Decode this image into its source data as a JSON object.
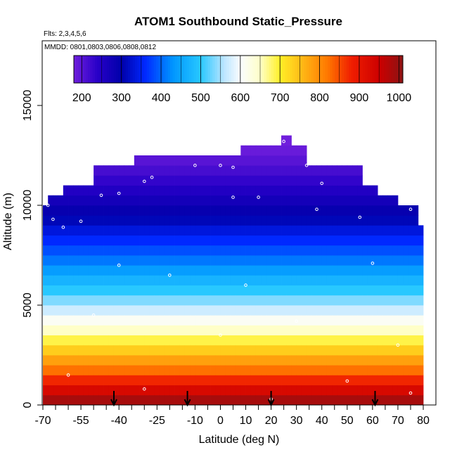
{
  "chart_data": {
    "type": "heatmap",
    "title": "ATOM1 Southbound Static_Pressure",
    "flights_note": "Flts: 2,3,4,5,6",
    "dates_note": "MMDD: 0801,0803,0806,0808,0812",
    "xlabel": "Latitude (deg N)",
    "ylabel": "Altitude (m)",
    "xlim": [
      -70,
      85
    ],
    "ylim": [
      0,
      17500
    ],
    "x_ticks": [
      -70,
      -55,
      -40,
      -25,
      -10,
      0,
      10,
      20,
      30,
      40,
      50,
      60,
      70,
      80
    ],
    "x_tick_labels": [
      "-70",
      "-55",
      "-40",
      "-25",
      "-10",
      "0",
      "10",
      "20",
      "30",
      "40",
      "50",
      "60",
      "70",
      "80"
    ],
    "x_minor_ticks": [
      -65,
      -60,
      -50,
      -45,
      -35,
      -30,
      -20,
      -15,
      -5,
      5,
      15,
      25,
      35,
      45,
      55,
      65,
      75,
      85
    ],
    "y_ticks": [
      0,
      5000,
      10000,
      15000
    ],
    "y_tick_labels": [
      "0",
      "5000",
      "10000",
      "15000"
    ],
    "colorbar": {
      "range": [
        180,
        1010
      ],
      "ticks": [
        200,
        300,
        400,
        500,
        600,
        700,
        800,
        900,
        1000
      ],
      "tick_labels": [
        "200",
        "300",
        "400",
        "500",
        "600",
        "700",
        "800",
        "900",
        "1000"
      ]
    },
    "altitude_band_m": 500,
    "lat_bin_deg": 2,
    "coverage": [
      {
        "lat_range": [
          -70,
          -68
        ],
        "max_alt_m": 10000
      },
      {
        "lat_range": [
          -68,
          -62
        ],
        "max_alt_m": 10500
      },
      {
        "lat_range": [
          -62,
          -58
        ],
        "max_alt_m": 11000
      },
      {
        "lat_range": [
          -58,
          -50
        ],
        "max_alt_m": 11000
      },
      {
        "lat_range": [
          -50,
          -34
        ],
        "max_alt_m": 12000
      },
      {
        "lat_range": [
          -34,
          -24
        ],
        "max_alt_m": 12500
      },
      {
        "lat_range": [
          -24,
          8
        ],
        "max_alt_m": 12500
      },
      {
        "lat_range": [
          8,
          24
        ],
        "max_alt_m": 13000
      },
      {
        "lat_range": [
          24,
          28
        ],
        "max_alt_m": 13500
      },
      {
        "lat_range": [
          28,
          34
        ],
        "max_alt_m": 13000
      },
      {
        "lat_range": [
          34,
          56
        ],
        "max_alt_m": 12000
      },
      {
        "lat_range": [
          56,
          62
        ],
        "max_alt_m": 11000
      },
      {
        "lat_range": [
          62,
          70
        ],
        "max_alt_m": 10500
      },
      {
        "lat_range": [
          70,
          78
        ],
        "max_alt_m": 10000
      },
      {
        "lat_range": [
          78,
          80
        ],
        "max_alt_m": 9000
      }
    ],
    "pressure_by_altitude_hpa": [
      {
        "alt_m": 250,
        "value": 985
      },
      {
        "alt_m": 750,
        "value": 930
      },
      {
        "alt_m": 1250,
        "value": 875
      },
      {
        "alt_m": 1750,
        "value": 825
      },
      {
        "alt_m": 2250,
        "value": 780
      },
      {
        "alt_m": 2750,
        "value": 735
      },
      {
        "alt_m": 3250,
        "value": 690
      },
      {
        "alt_m": 3750,
        "value": 650
      },
      {
        "alt_m": 4250,
        "value": 610
      },
      {
        "alt_m": 4750,
        "value": 570
      },
      {
        "alt_m": 5250,
        "value": 535
      },
      {
        "alt_m": 5750,
        "value": 500
      },
      {
        "alt_m": 6250,
        "value": 470
      },
      {
        "alt_m": 6750,
        "value": 440
      },
      {
        "alt_m": 7250,
        "value": 410
      },
      {
        "alt_m": 7750,
        "value": 385
      },
      {
        "alt_m": 8250,
        "value": 360
      },
      {
        "alt_m": 8750,
        "value": 335
      },
      {
        "alt_m": 9250,
        "value": 310
      },
      {
        "alt_m": 9750,
        "value": 290
      },
      {
        "alt_m": 10250,
        "value": 270
      },
      {
        "alt_m": 10750,
        "value": 250
      },
      {
        "alt_m": 11250,
        "value": 232
      },
      {
        "alt_m": 11750,
        "value": 215
      },
      {
        "alt_m": 12250,
        "value": 200
      },
      {
        "alt_m": 12750,
        "value": 187
      },
      {
        "alt_m": 13250,
        "value": 180
      }
    ],
    "arrow_latitudes": [
      -42,
      -13,
      20,
      61
    ],
    "flight_track_points": [
      {
        "lat": -66,
        "alt_m": 9300
      },
      {
        "lat": -68,
        "alt_m": 10000
      },
      {
        "lat": -62,
        "alt_m": 8900
      },
      {
        "lat": -55,
        "alt_m": 9200
      },
      {
        "lat": -47,
        "alt_m": 10500
      },
      {
        "lat": -40,
        "alt_m": 10600
      },
      {
        "lat": -30,
        "alt_m": 11200
      },
      {
        "lat": -27,
        "alt_m": 11400
      },
      {
        "lat": -10,
        "alt_m": 12000
      },
      {
        "lat": 0,
        "alt_m": 12000
      },
      {
        "lat": 5,
        "alt_m": 11900
      },
      {
        "lat": 25,
        "alt_m": 13200
      },
      {
        "lat": 34,
        "alt_m": 12000
      },
      {
        "lat": 40,
        "alt_m": 11100
      },
      {
        "lat": 15,
        "alt_m": 10400
      },
      {
        "lat": 5,
        "alt_m": 10400
      },
      {
        "lat": 38,
        "alt_m": 9800
      },
      {
        "lat": 55,
        "alt_m": 9400
      },
      {
        "lat": 75,
        "alt_m": 9800
      },
      {
        "lat": -40,
        "alt_m": 7000
      },
      {
        "lat": -20,
        "alt_m": 6500
      },
      {
        "lat": 10,
        "alt_m": 6000
      },
      {
        "lat": 60,
        "alt_m": 7100
      },
      {
        "lat": -50,
        "alt_m": 4500
      },
      {
        "lat": 0,
        "alt_m": 3500
      },
      {
        "lat": 30,
        "alt_m": 4200
      },
      {
        "lat": 70,
        "alt_m": 3000
      },
      {
        "lat": -60,
        "alt_m": 1500
      },
      {
        "lat": -30,
        "alt_m": 800
      },
      {
        "lat": 20,
        "alt_m": 300
      },
      {
        "lat": 50,
        "alt_m": 1200
      },
      {
        "lat": 75,
        "alt_m": 600
      }
    ]
  }
}
